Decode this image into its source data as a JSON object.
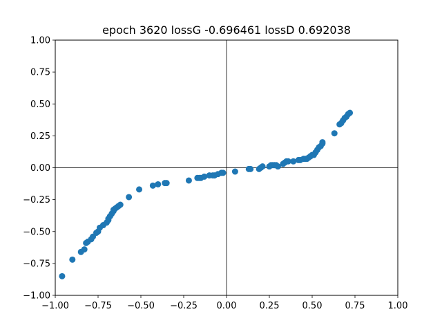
{
  "chart_data": {
    "type": "scatter",
    "title": "epoch 3620 lossG -0.696461 lossD 0.692038",
    "xlabel": "",
    "ylabel": "",
    "xlim": [
      -1.0,
      1.0
    ],
    "ylim": [
      -1.0,
      1.0
    ],
    "xticks": [
      -1.0,
      -0.75,
      -0.5,
      -0.25,
      0.0,
      0.25,
      0.5,
      0.75,
      1.0
    ],
    "yticks": [
      -1.0,
      -0.75,
      -0.5,
      -0.25,
      0.0,
      0.25,
      0.5,
      0.75,
      1.0
    ],
    "xtick_labels": [
      "−1.00",
      "−0.75",
      "−0.50",
      "−0.25",
      "0.00",
      "0.25",
      "0.50",
      "0.75",
      "1.00"
    ],
    "ytick_labels": [
      "−1.00",
      "−0.75",
      "−0.50",
      "−0.25",
      "0.00",
      "0.25",
      "0.50",
      "0.75",
      "1.00"
    ],
    "grid": false,
    "reference_lines": {
      "x": 0,
      "y": 0
    },
    "marker_color": "#1f77b4",
    "points": [
      [
        -0.96,
        -0.85
      ],
      [
        -0.9,
        -0.72
      ],
      [
        -0.85,
        -0.66
      ],
      [
        -0.83,
        -0.64
      ],
      [
        -0.82,
        -0.59
      ],
      [
        -0.81,
        -0.58
      ],
      [
        -0.79,
        -0.56
      ],
      [
        -0.78,
        -0.54
      ],
      [
        -0.76,
        -0.51
      ],
      [
        -0.75,
        -0.5
      ],
      [
        -0.74,
        -0.47
      ],
      [
        -0.72,
        -0.45
      ],
      [
        -0.7,
        -0.43
      ],
      [
        -0.69,
        -0.41
      ],
      [
        -0.69,
        -0.4
      ],
      [
        -0.68,
        -0.38
      ],
      [
        -0.67,
        -0.36
      ],
      [
        -0.66,
        -0.34
      ],
      [
        -0.66,
        -0.33
      ],
      [
        -0.65,
        -0.32
      ],
      [
        -0.64,
        -0.31
      ],
      [
        -0.63,
        -0.3
      ],
      [
        -0.62,
        -0.29
      ],
      [
        -0.57,
        -0.23
      ],
      [
        -0.51,
        -0.17
      ],
      [
        -0.43,
        -0.14
      ],
      [
        -0.4,
        -0.13
      ],
      [
        -0.36,
        -0.12
      ],
      [
        -0.35,
        -0.12
      ],
      [
        -0.22,
        -0.1
      ],
      [
        -0.17,
        -0.08
      ],
      [
        -0.16,
        -0.08
      ],
      [
        -0.15,
        -0.08
      ],
      [
        -0.13,
        -0.07
      ],
      [
        -0.1,
        -0.06
      ],
      [
        -0.08,
        -0.06
      ],
      [
        -0.07,
        -0.06
      ],
      [
        -0.05,
        -0.05
      ],
      [
        -0.03,
        -0.04
      ],
      [
        -0.02,
        -0.04
      ],
      [
        0.05,
        -0.03
      ],
      [
        0.13,
        -0.01
      ],
      [
        0.14,
        -0.01
      ],
      [
        0.19,
        -0.01
      ],
      [
        0.2,
        0.0
      ],
      [
        0.21,
        0.01
      ],
      [
        0.25,
        0.01
      ],
      [
        0.26,
        0.02
      ],
      [
        0.27,
        0.02
      ],
      [
        0.28,
        0.02
      ],
      [
        0.29,
        0.02
      ],
      [
        0.3,
        0.01
      ],
      [
        0.33,
        0.03
      ],
      [
        0.34,
        0.04
      ],
      [
        0.35,
        0.05
      ],
      [
        0.36,
        0.05
      ],
      [
        0.39,
        0.05
      ],
      [
        0.42,
        0.06
      ],
      [
        0.43,
        0.06
      ],
      [
        0.45,
        0.07
      ],
      [
        0.46,
        0.07
      ],
      [
        0.47,
        0.07
      ],
      [
        0.48,
        0.08
      ],
      [
        0.49,
        0.09
      ],
      [
        0.5,
        0.1
      ],
      [
        0.51,
        0.1
      ],
      [
        0.52,
        0.12
      ],
      [
        0.53,
        0.14
      ],
      [
        0.54,
        0.16
      ],
      [
        0.55,
        0.17
      ],
      [
        0.56,
        0.19
      ],
      [
        0.56,
        0.2
      ],
      [
        0.63,
        0.27
      ],
      [
        0.66,
        0.34
      ],
      [
        0.67,
        0.35
      ],
      [
        0.68,
        0.37
      ],
      [
        0.69,
        0.39
      ],
      [
        0.7,
        0.4
      ],
      [
        0.71,
        0.42
      ],
      [
        0.72,
        0.43
      ]
    ]
  }
}
